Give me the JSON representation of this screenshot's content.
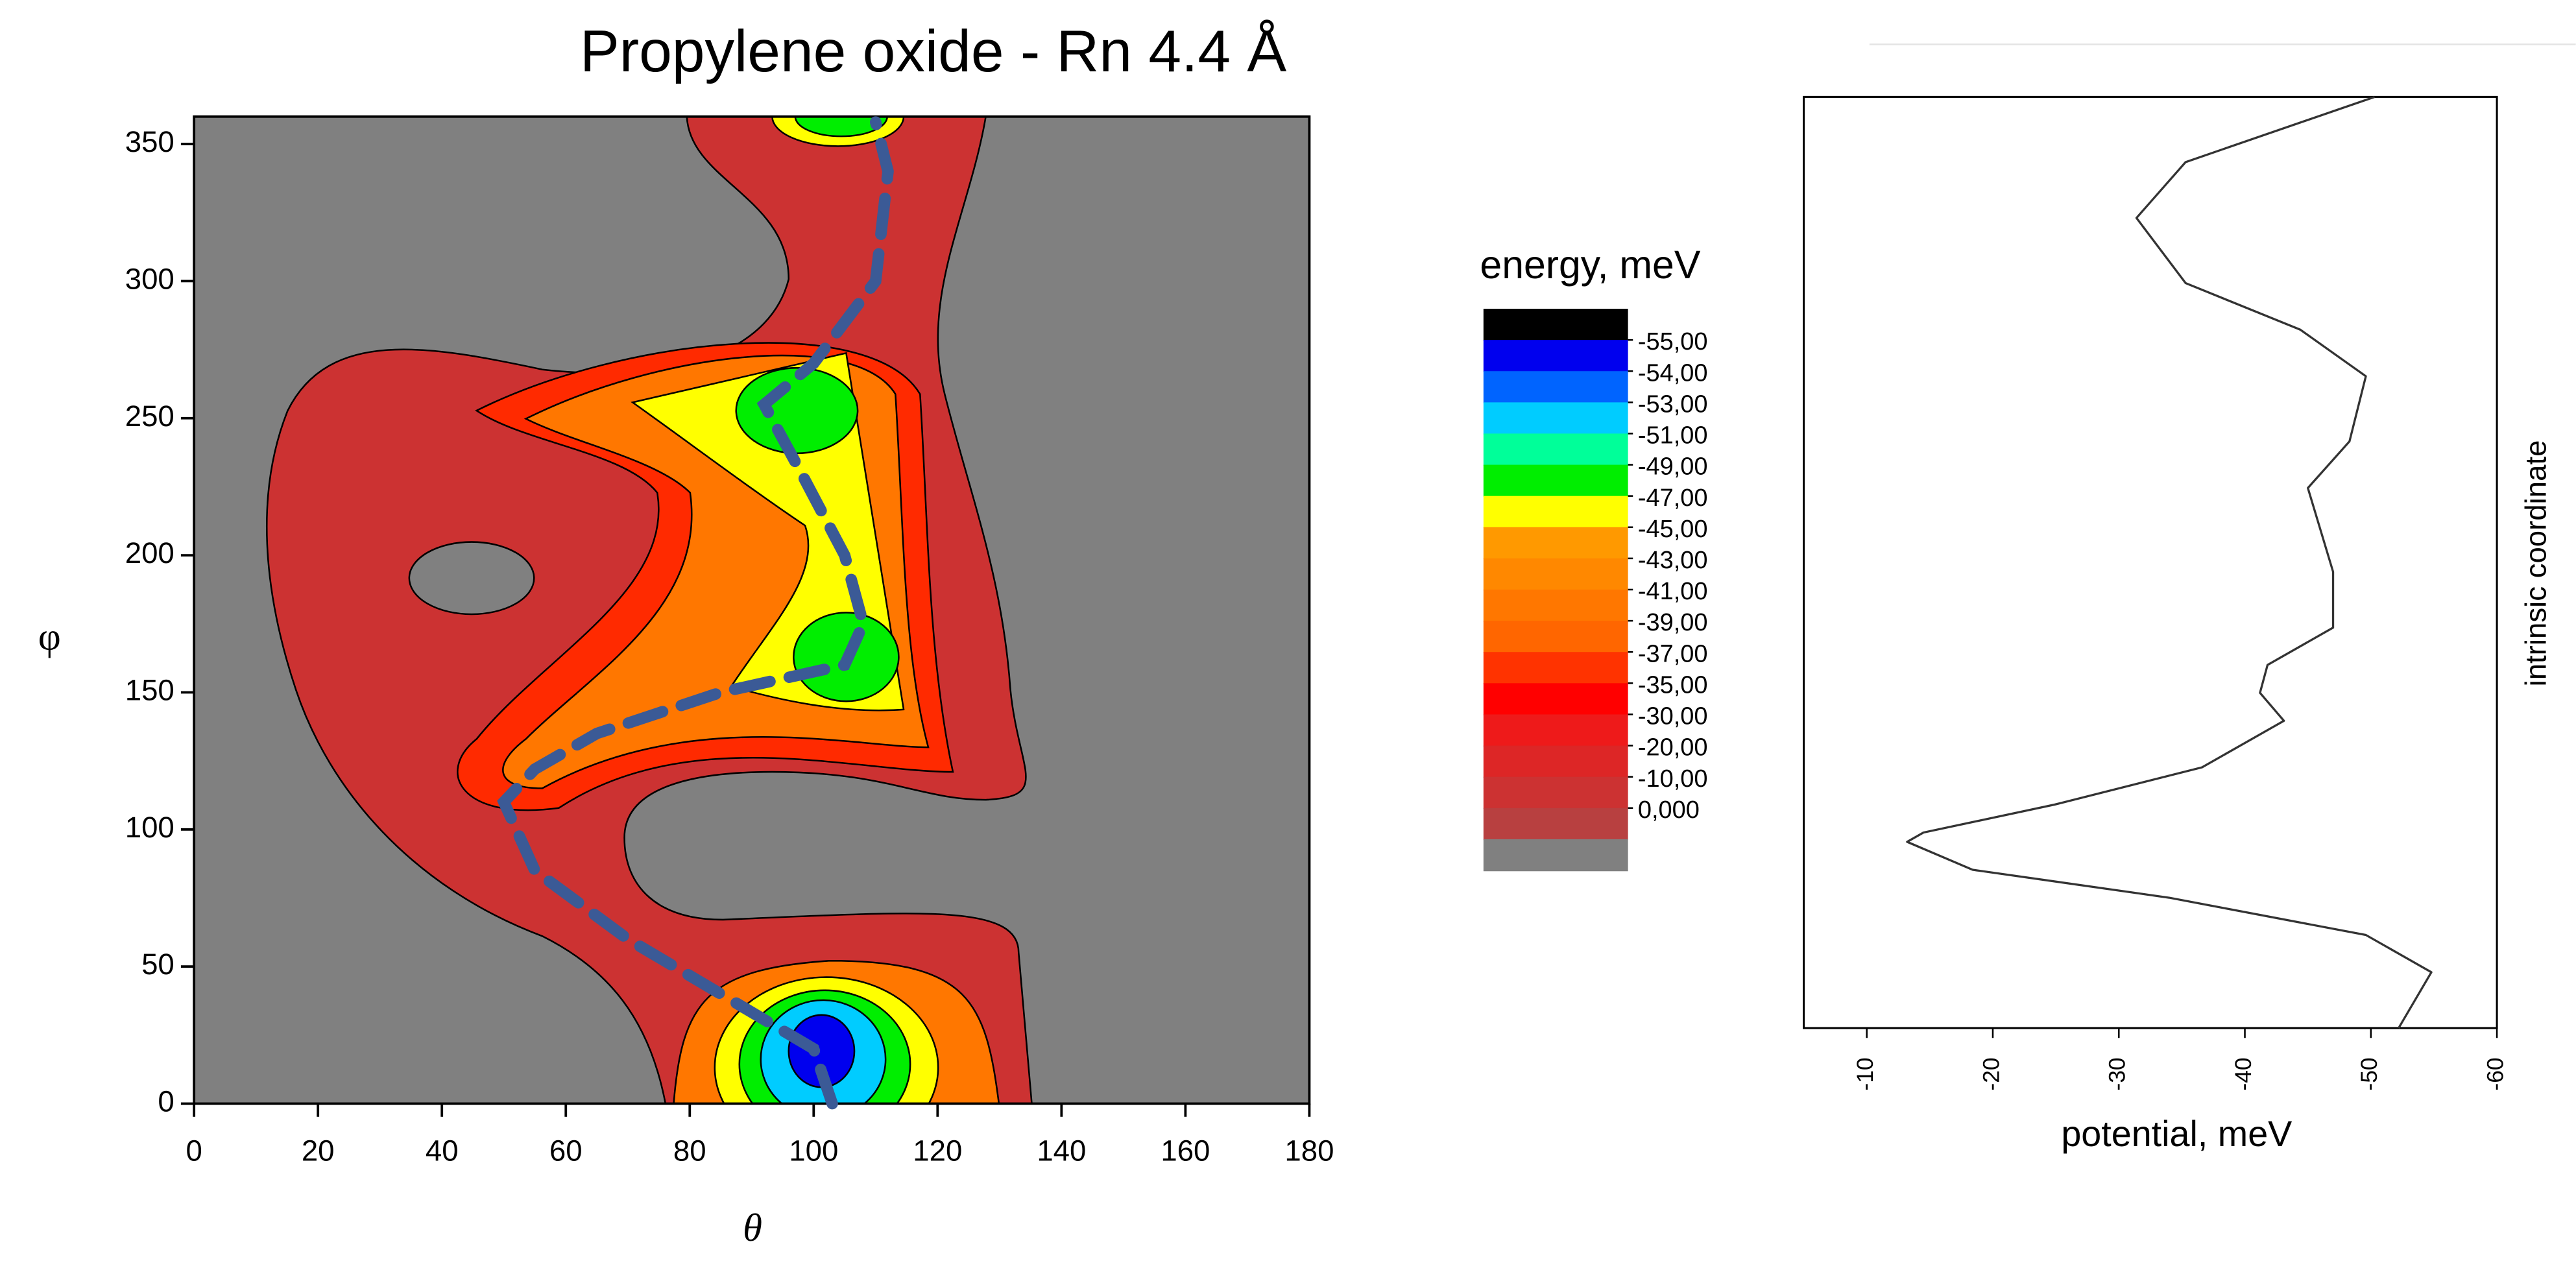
{
  "chart_data": [
    {
      "type": "contour",
      "title": "Propylene oxide - Rn 4.4 Å",
      "x_label": "θ",
      "y_label": "φ",
      "xlim": [
        0,
        180
      ],
      "ylim": [
        0,
        360
      ],
      "xticks": [
        0,
        20,
        40,
        60,
        80,
        100,
        120,
        140,
        160,
        180
      ],
      "yticks": [
        0,
        50,
        100,
        150,
        200,
        250,
        300,
        350
      ],
      "colorbar_title": "energy, meV",
      "colorbar_levels": [
        {
          "value": -55,
          "label": "-55,00"
        },
        {
          "value": -54,
          "label": "-54,00"
        },
        {
          "value": -53,
          "label": "-53,00"
        },
        {
          "value": -51,
          "label": "-51,00"
        },
        {
          "value": -49,
          "label": "-49,00"
        },
        {
          "value": -47,
          "label": "-47,00"
        },
        {
          "value": -45,
          "label": "-45,00"
        },
        {
          "value": -43,
          "label": "-43,00"
        },
        {
          "value": -41,
          "label": "-41,00"
        },
        {
          "value": -39,
          "label": "-39,00"
        },
        {
          "value": -37,
          "label": "-37,00"
        },
        {
          "value": -35,
          "label": "-35,00"
        },
        {
          "value": -30,
          "label": "-30,00"
        },
        {
          "value": -20,
          "label": "-20,00"
        },
        {
          "value": -10,
          "label": "-10,00"
        },
        {
          "value": 0,
          "label": "0,000"
        }
      ],
      "colorbar_colors": [
        "#000000",
        "#0000ee",
        "#0064ff",
        "#00ccff",
        "#00ff99",
        "#00ee00",
        "#ffff00",
        "#ff9900",
        "#ff8800",
        "#ff7700",
        "#ff6600",
        "#ff3300",
        "#ff0000",
        "#ee1a1a",
        "#dd2626",
        "#cc3232",
        "#b84040",
        "#808080"
      ],
      "path": {
        "color": "#3b5a96",
        "x": [
          103,
          100,
          85,
          70,
          55,
          50,
          55,
          65,
          85,
          105,
          108,
          105,
          98,
          92,
          100,
          110,
          112,
          110
        ],
        "y": [
          0,
          20,
          40,
          60,
          85,
          110,
          122,
          135,
          150,
          160,
          175,
          200,
          230,
          255,
          270,
          300,
          340,
          358
        ]
      }
    },
    {
      "type": "line",
      "x_label": "potential, meV",
      "y_label": "intrinsic coordinate",
      "color": "#333333",
      "xlim": [
        -5,
        -60
      ],
      "xticks": [
        -10,
        -20,
        -30,
        -40,
        -50,
        -60
      ],
      "ylim": [
        0,
        1
      ],
      "x": [
        -50.3,
        -35.3,
        -31.4,
        -35.3,
        -44.4,
        -49.6,
        -48.3,
        -45.0,
        -47.0,
        -47.0,
        -41.8,
        -41.2,
        -43.1,
        -36.6,
        -24.9,
        -14.5,
        -13.2,
        -18.4,
        -34.0,
        -49.6,
        -54.8,
        -52.2
      ],
      "y": [
        1.0,
        0.93,
        0.87,
        0.8,
        0.75,
        0.7,
        0.63,
        0.58,
        0.49,
        0.43,
        0.39,
        0.36,
        0.33,
        0.28,
        0.24,
        0.21,
        0.2,
        0.17,
        0.14,
        0.1,
        0.06,
        0.0
      ]
    }
  ]
}
